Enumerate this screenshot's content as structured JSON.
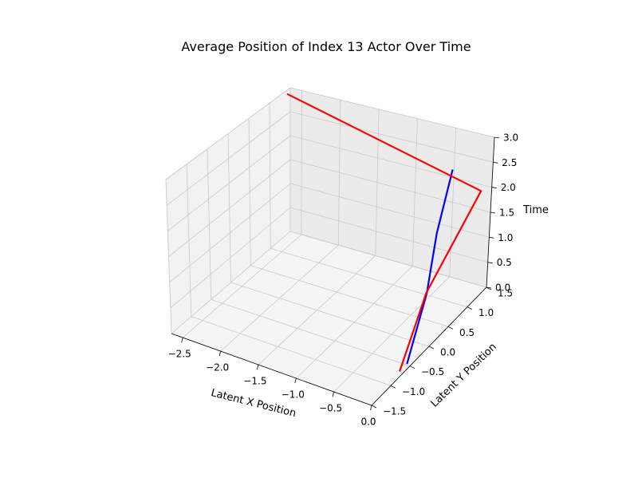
{
  "chart_data": {
    "type": "line3d",
    "title": "Average Position of Index 13 Actor Over Time",
    "xlabel": "Latent X Position",
    "ylabel": "Latent Y Position",
    "zlabel": "Time",
    "xlim": [
      -2.65,
      0.0
    ],
    "ylim": [
      -1.5,
      1.5
    ],
    "zlim": [
      0.0,
      3.0
    ],
    "xticks": [
      -2.5,
      -2.0,
      -1.5,
      -1.0,
      -0.5,
      0.0
    ],
    "xtick_labels": [
      "−2.5",
      "−2.0",
      "−1.5",
      "−1.0",
      "−0.5",
      "0.0"
    ],
    "yticks": [
      -1.5,
      -1.0,
      -0.5,
      0.0,
      0.5,
      1.0,
      1.5
    ],
    "ytick_labels": [
      "−1.5",
      "−1.0",
      "−0.5",
      "0.0",
      "0.5",
      "1.0",
      "1.5"
    ],
    "zticks": [
      0.0,
      0.5,
      1.0,
      1.5,
      2.0,
      2.5,
      3.0
    ],
    "ztick_labels": [
      "0.0",
      "0.5",
      "1.0",
      "1.5",
      "2.0",
      "2.5",
      "3.0"
    ],
    "grid": true,
    "series": [
      {
        "color": "#0000ff",
        "points": [
          {
            "x": -0.05,
            "y": -0.48,
            "z": 0.0
          },
          {
            "x": -0.05,
            "y": -0.02,
            "z": 1.0
          },
          {
            "x": -0.05,
            "y": 0.18,
            "z": 2.0
          },
          {
            "x": -0.05,
            "y": 0.53,
            "z": 3.0
          }
        ]
      },
      {
        "color": "#ff0000",
        "points": [
          {
            "x": -0.05,
            "y": -0.67,
            "z": 0.0
          },
          {
            "x": -0.06,
            "y": -0.01,
            "z": 1.0
          },
          {
            "x": -0.07,
            "y": 1.36,
            "z": 2.0
          },
          {
            "x": -2.6,
            "y": 1.33,
            "z": 3.0
          }
        ]
      }
    ]
  }
}
